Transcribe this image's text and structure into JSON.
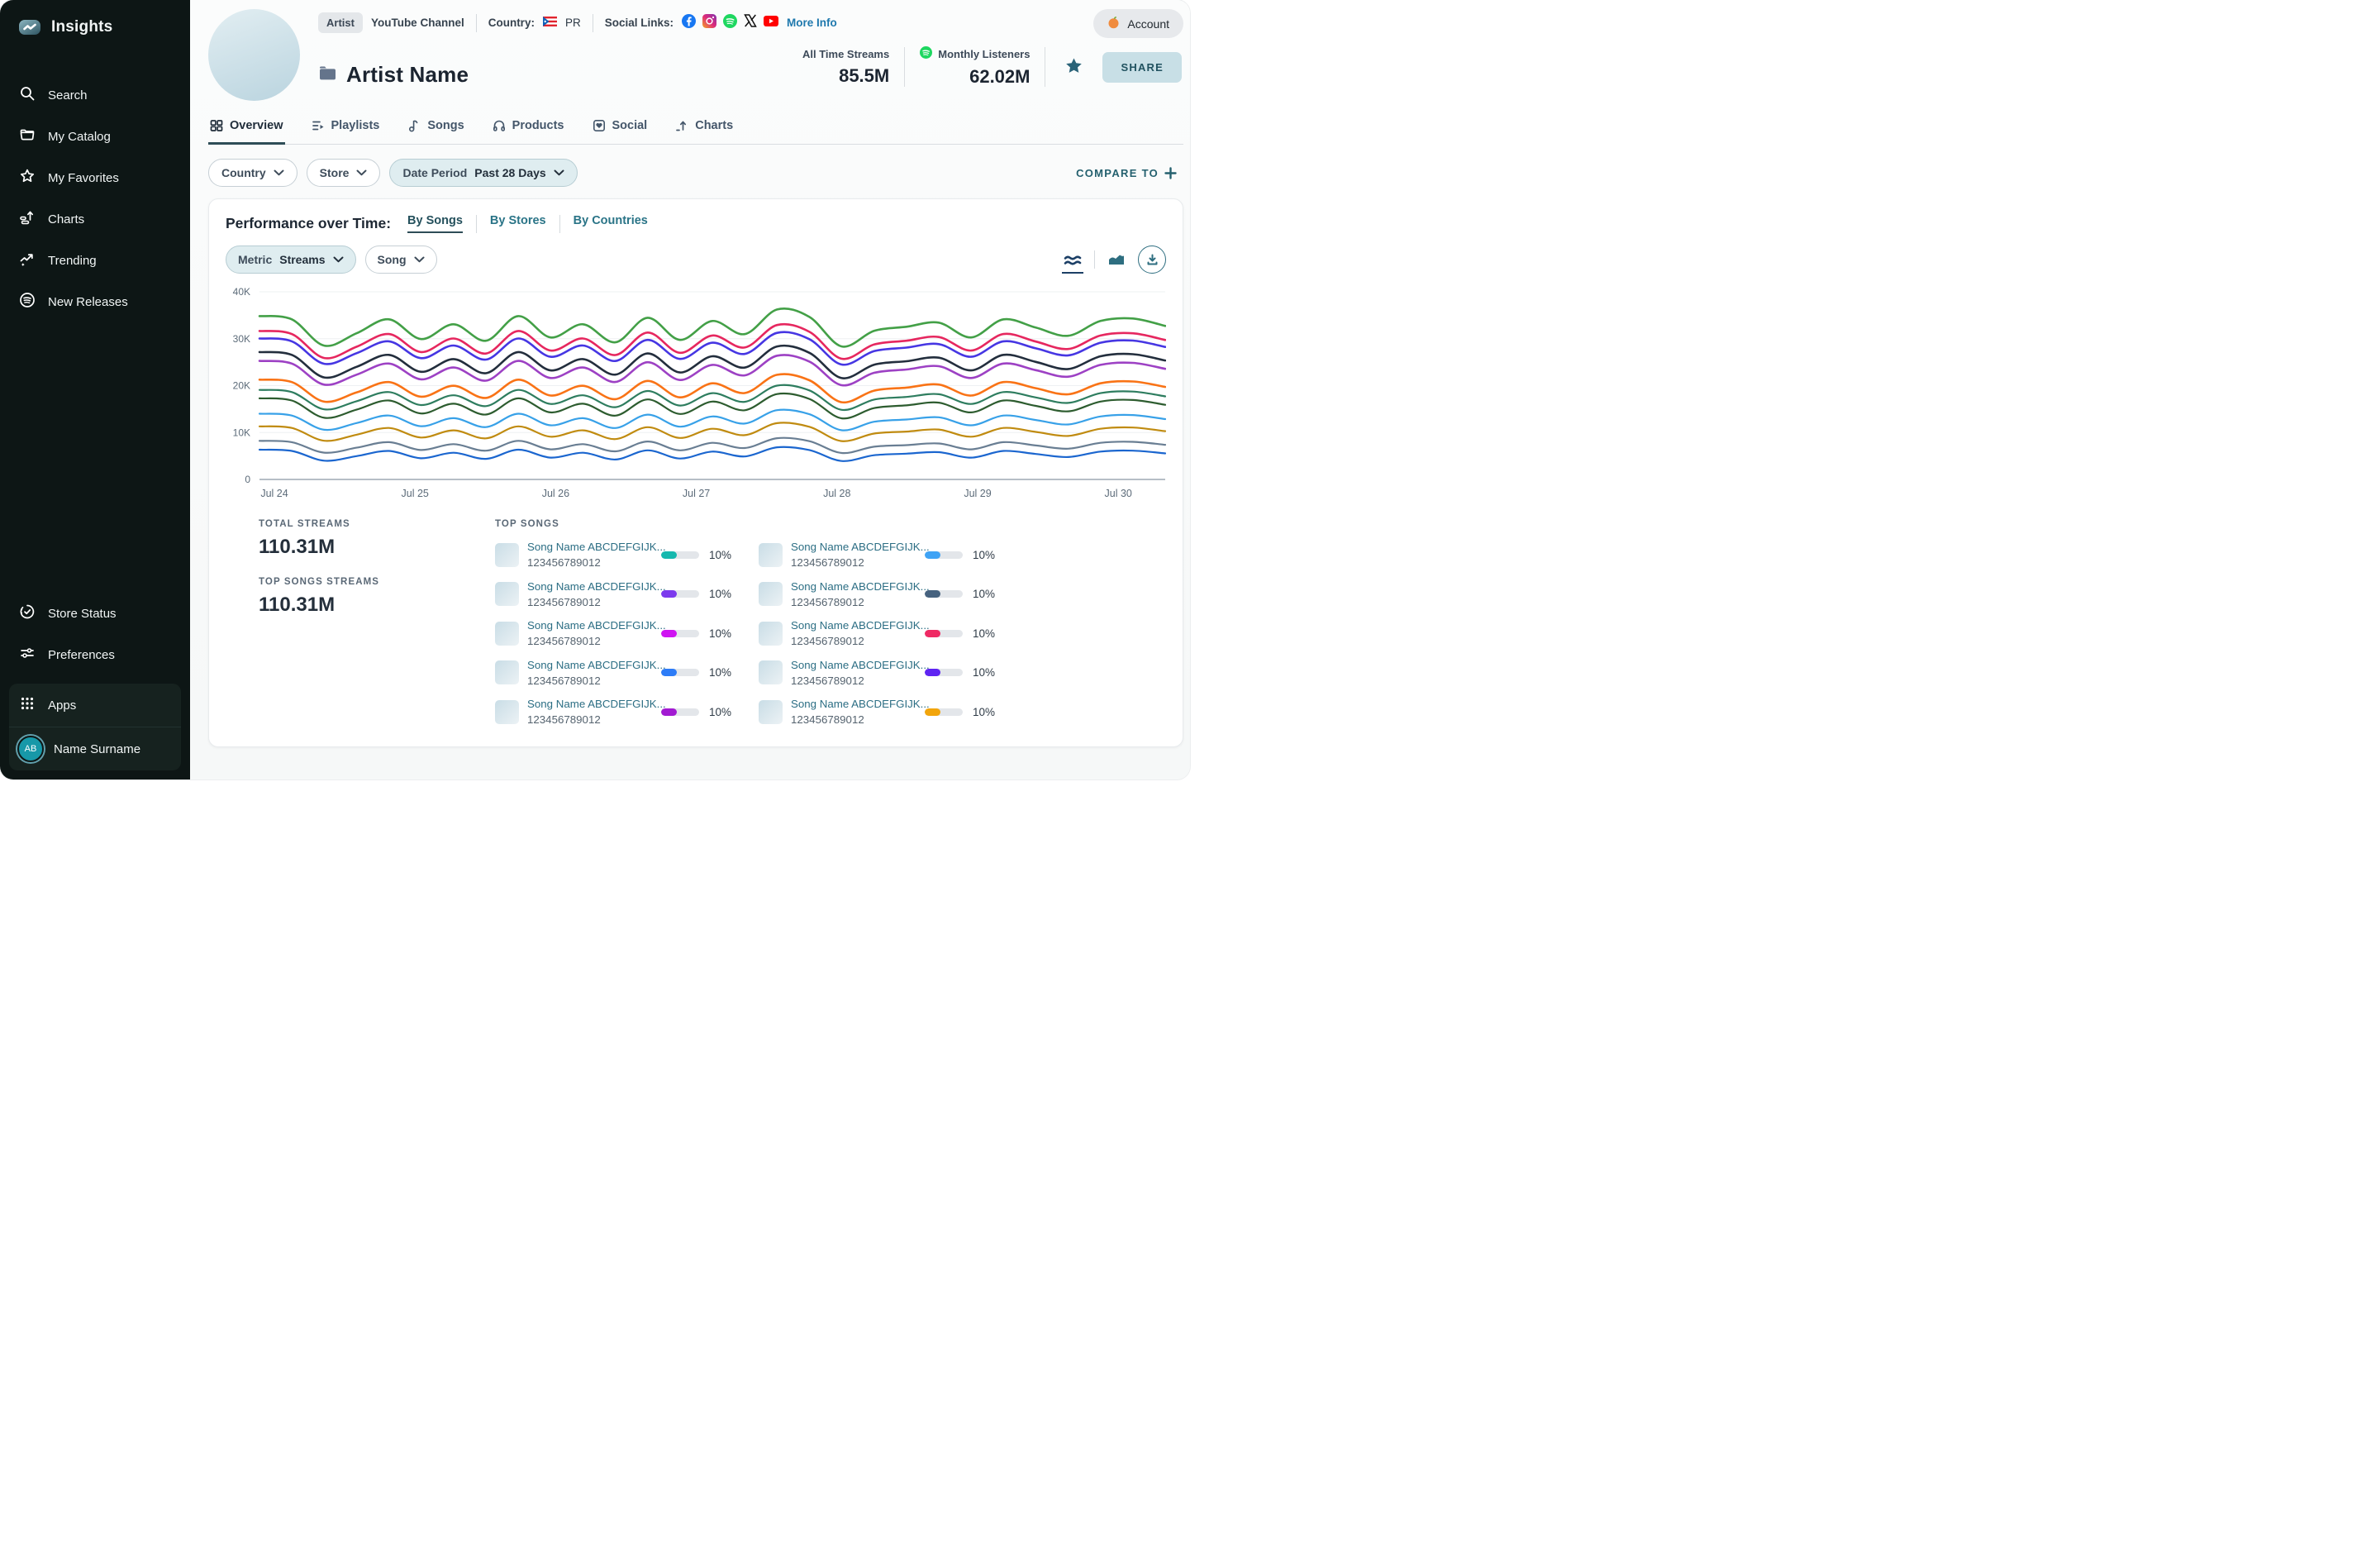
{
  "theme": {
    "sidebar_bg": "#0d1615",
    "accent_teal": "#2a7487",
    "dark_teal": "#24606e",
    "share_bg": "#c8dfe6",
    "date_pill_bg": "#dfedf0",
    "more_info_blue": "#1e78ad"
  },
  "sidebar": {
    "brand": "Insights",
    "items": [
      {
        "label": "Search",
        "icon": "search-icon"
      },
      {
        "label": "My Catalog",
        "icon": "folder-icon"
      },
      {
        "label": "My Favorites",
        "icon": "star-icon"
      },
      {
        "label": "Charts",
        "icon": "charts-icon"
      },
      {
        "label": "Trending",
        "icon": "trending-icon"
      },
      {
        "label": "New Releases",
        "icon": "new-releases-icon"
      }
    ],
    "footer_items": [
      {
        "label": "Store Status",
        "icon": "store-status-icon"
      },
      {
        "label": "Preferences",
        "icon": "preferences-icon"
      }
    ],
    "apps_label": "Apps",
    "user": {
      "initials": "AB",
      "name": "Name Surname"
    }
  },
  "header": {
    "type_badge": "Artist",
    "channel_label": "YouTube Channel",
    "country_label": "Country:",
    "country_code": "PR",
    "social_label": "Social Links:",
    "social_icons": [
      "facebook",
      "instagram",
      "spotify",
      "x",
      "youtube"
    ],
    "more_info": "More Info",
    "account_label": "Account",
    "artist_name": "Artist Name",
    "stats": [
      {
        "label": "All Time Streams",
        "value": "85.5M"
      },
      {
        "label": "Monthly Listeners",
        "value": "62.02M",
        "icon": "spotify"
      }
    ],
    "share_label": "SHARE"
  },
  "tabs": [
    {
      "label": "Overview",
      "active": true
    },
    {
      "label": "Playlists"
    },
    {
      "label": "Songs"
    },
    {
      "label": "Products"
    },
    {
      "label": "Social"
    },
    {
      "label": "Charts"
    }
  ],
  "filters": {
    "country": "Country",
    "store": "Store",
    "date_period_label": "Date Period",
    "date_period_value": "Past 28 Days",
    "compare_label": "COMPARE TO"
  },
  "performance": {
    "title": "Performance over Time:",
    "views": [
      {
        "label": "By Songs",
        "active": true
      },
      {
        "label": "By Stores"
      },
      {
        "label": "By Countries"
      }
    ],
    "metric_label": "Metric",
    "metric_value": "Streams",
    "breakdown_value": "Song"
  },
  "chart_data": {
    "type": "line",
    "title": "Performance over Time",
    "xlabel": "",
    "ylabel": "Streams",
    "x_labels": [
      "Jul 24",
      "Jul 25",
      "Jul 26",
      "Jul 27",
      "Jul 28",
      "Jul 29",
      "Jul 30"
    ],
    "y_ticks": [
      {
        "value": 0,
        "label": "0"
      },
      {
        "value": 10000,
        "label": "10K"
      },
      {
        "value": 20000,
        "label": "20K"
      },
      {
        "value": 30000,
        "label": "30K"
      },
      {
        "value": 40000,
        "label": "40K"
      }
    ],
    "ylim": [
      0,
      40000
    ],
    "grid": "horizontal",
    "legend": "none",
    "samples_per_day": 4,
    "waveform": [
      0.95,
      0.75,
      -0.85,
      -0.1,
      0.75,
      -0.45,
      0.45,
      -0.55,
      0.95,
      -0.35,
      0.45,
      -0.65,
      0.85,
      -0.5,
      0.65,
      -0.15,
      1.35,
      0.9,
      -0.9,
      0.05,
      0.3,
      0.55,
      -0.35,
      0.75,
      0.25,
      -0.25,
      0.65,
      0.8,
      0.35
    ],
    "series": [
      {
        "name": "series-1",
        "color": "#43a047",
        "base": 31500,
        "amplitude": 3500
      },
      {
        "name": "series-2",
        "color": "#e6275f",
        "base": 28600,
        "amplitude": 3200
      },
      {
        "name": "series-3",
        "color": "#4636e3",
        "base": 27200,
        "amplitude": 3000
      },
      {
        "name": "series-4",
        "color": "#232e3d",
        "base": 24300,
        "amplitude": 3000
      },
      {
        "name": "series-5",
        "color": "#9d41c4",
        "base": 22600,
        "amplitude": 2800
      },
      {
        "name": "series-6",
        "color": "#f97316",
        "base": 18800,
        "amplitude": 2600
      },
      {
        "name": "series-7",
        "color": "#2e7d5f",
        "base": 16900,
        "amplitude": 2300
      },
      {
        "name": "series-8",
        "color": "#2d5c2f",
        "base": 15100,
        "amplitude": 2300
      },
      {
        "name": "series-9",
        "color": "#38a1e8",
        "base": 12200,
        "amplitude": 1900
      },
      {
        "name": "series-10",
        "color": "#c08b10",
        "base": 9700,
        "amplitude": 1700
      },
      {
        "name": "series-11",
        "color": "#697e93",
        "base": 6900,
        "amplitude": 1400
      },
      {
        "name": "series-12",
        "color": "#1b66cf",
        "base": 5100,
        "amplitude": 1300
      }
    ]
  },
  "summary": {
    "total_streams_label": "TOTAL STREAMS",
    "total_streams_value": "110.31M",
    "top_songs_streams_label": "TOP SONGS STREAMS",
    "top_songs_streams_value": "110.31M"
  },
  "top_songs": {
    "title": "TOP SONGS",
    "columns": [
      {
        "items": [
          {
            "title": "Song Name ABCDEFGIJK...",
            "song_id": "123456789012",
            "percent": "10%",
            "bar_color": "#16b8ae",
            "bar_fill": "42%"
          },
          {
            "title": "Song Name ABCDEFGIJK...",
            "song_id": "123456789012",
            "percent": "10%",
            "bar_color": "#7c3aed",
            "bar_fill": "42%"
          },
          {
            "title": "Song Name ABCDEFGIJK...",
            "song_id": "123456789012",
            "percent": "10%",
            "bar_color": "#cf13f2",
            "bar_fill": "42%"
          },
          {
            "title": "Song Name ABCDEFGIJK...",
            "song_id": "123456789012",
            "percent": "10%",
            "bar_color": "#2d7cf7",
            "bar_fill": "42%"
          },
          {
            "title": "Song Name ABCDEFGIJK...",
            "song_id": "123456789012",
            "percent": "10%",
            "bar_color": "#a21ad2",
            "bar_fill": "42%"
          }
        ]
      },
      {
        "items": [
          {
            "title": "Song Name ABCDEFGIJK...",
            "song_id": "123456789012",
            "percent": "10%",
            "bar_color": "#3fa3f5",
            "bar_fill": "42%"
          },
          {
            "title": "Song Name ABCDEFGIJK...",
            "song_id": "123456789012",
            "percent": "10%",
            "bar_color": "#46627f",
            "bar_fill": "42%"
          },
          {
            "title": "Song Name ABCDEFGIJK...",
            "song_id": "123456789012",
            "percent": "10%",
            "bar_color": "#ef2a64",
            "bar_fill": "42%"
          },
          {
            "title": "Song Name ABCDEFGIJK...",
            "song_id": "123456789012",
            "percent": "10%",
            "bar_color": "#5f24f2",
            "bar_fill": "42%"
          },
          {
            "title": "Song Name ABCDEFGIJK...",
            "song_id": "123456789012",
            "percent": "10%",
            "bar_color": "#f2a50c",
            "bar_fill": "42%"
          }
        ]
      }
    ]
  }
}
